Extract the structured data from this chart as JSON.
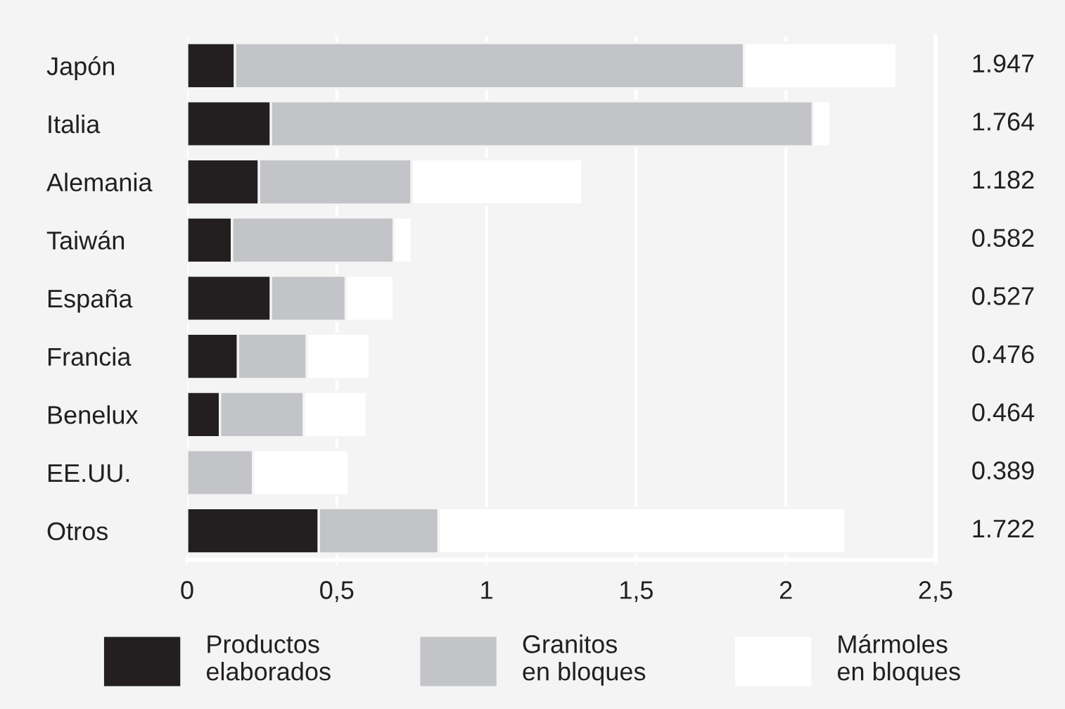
{
  "chart_data": {
    "type": "bar",
    "orientation": "horizontal",
    "stacked": true,
    "categories": [
      "Japón",
      "Italia",
      "Alemania",
      "Taiwán",
      "España",
      "Francia",
      "Benelux",
      "EE.UU.",
      "Otros"
    ],
    "series": [
      {
        "name": "Productos\nelaborados",
        "color": "#231f20",
        "values": [
          0.16,
          0.28,
          0.24,
          0.15,
          0.28,
          0.17,
          0.11,
          0,
          0.44
        ]
      },
      {
        "name": "Granitos\nen bloques",
        "color": "#c3c4c7",
        "values": [
          1.7,
          1.81,
          0.51,
          0.54,
          0.25,
          0.23,
          0.28,
          0.22,
          0.4
        ]
      },
      {
        "name": "Mármoles\nen bloques",
        "color": "#ffffff",
        "values": [
          0.51,
          0.06,
          0.57,
          0.06,
          0.16,
          0.21,
          0.21,
          0.32,
          1.36
        ]
      }
    ],
    "annotations": [
      "1.947",
      "1.764",
      "1.182",
      "0.582",
      "0.527",
      "0.476",
      "0.464",
      "0.389",
      "1.722"
    ],
    "xlim": [
      0,
      2.5
    ],
    "xticks": [
      0,
      {
        "value": 0.5,
        "label": "0,5"
      },
      1,
      {
        "value": 1.5,
        "label": "1,5"
      },
      2,
      {
        "value": 2.5,
        "label": "2,5"
      }
    ],
    "grid": "x",
    "legend": "bottom"
  }
}
